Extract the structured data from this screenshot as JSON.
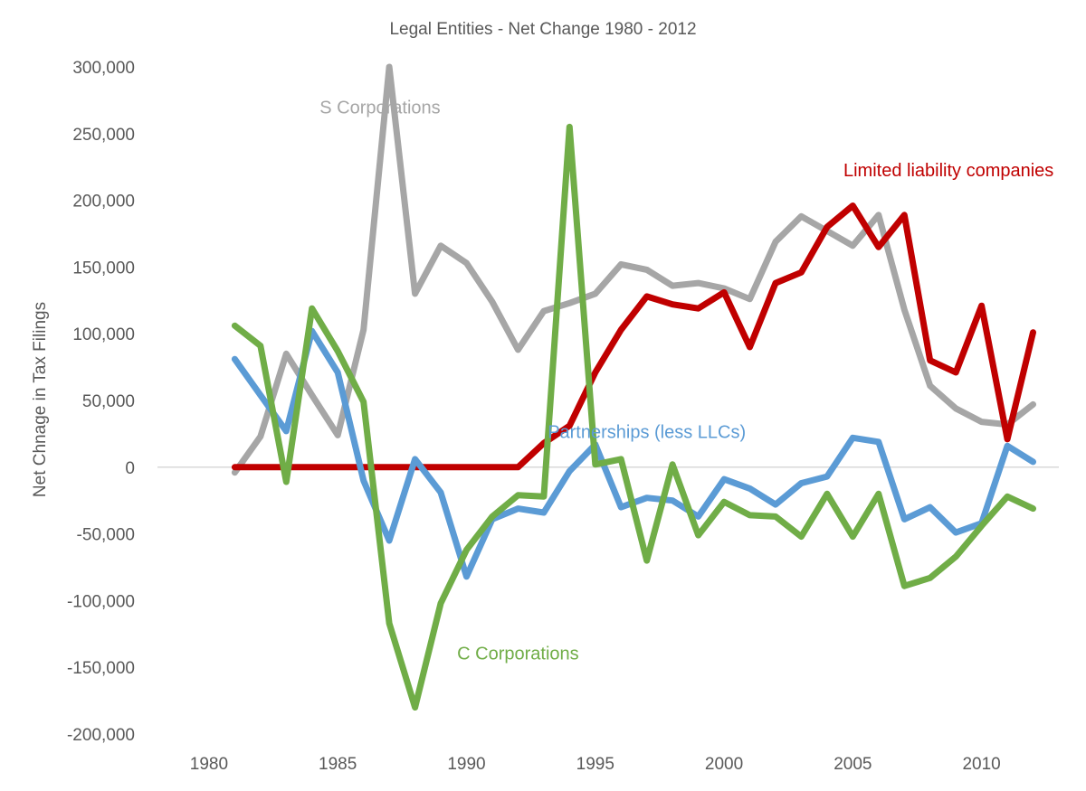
{
  "chart_data": {
    "type": "line",
    "title": "Legal Entities - Net Change 1980 - 2012",
    "xlabel": "",
    "ylabel": "Net Chnage in Tax Filings",
    "xlim": [
      1978,
      2013
    ],
    "ylim": [
      -200000,
      300000
    ],
    "x_ticks": [
      1980,
      1985,
      1990,
      1995,
      2000,
      2005,
      2010
    ],
    "x_tick_labels": [
      "1980",
      "1985",
      "1990",
      "1995",
      "2000",
      "2005",
      "2010"
    ],
    "y_ticks": [
      300000,
      250000,
      200000,
      150000,
      100000,
      50000,
      0,
      -50000,
      -100000,
      -150000,
      -200000
    ],
    "y_tick_labels": [
      "300,000",
      "250,000",
      "200,000",
      "150,000",
      "100,000",
      "50,000",
      "0",
      "-50,000",
      "-100,000",
      "-150,000",
      "-200,000"
    ],
    "grid": false,
    "legend": "inline labels",
    "x": [
      1981,
      1982,
      1983,
      1984,
      1985,
      1986,
      1987,
      1988,
      1989,
      1990,
      1991,
      1992,
      1993,
      1994,
      1995,
      1996,
      1997,
      1998,
      1999,
      2000,
      2001,
      2002,
      2003,
      2004,
      2005,
      2006,
      2007,
      2008,
      2009,
      2010,
      2011,
      2012
    ],
    "series": [
      {
        "name": "S Corporations",
        "label": "S Corporations",
        "color": "#a6a6a6",
        "values": [
          -4000,
          23000,
          85000,
          54000,
          24000,
          103000,
          300000,
          130000,
          166000,
          153000,
          124000,
          88000,
          117000,
          123000,
          130000,
          152000,
          148000,
          136000,
          138000,
          134000,
          126000,
          169000,
          188000,
          177000,
          166000,
          189000,
          118000,
          61000,
          44000,
          34000,
          32000,
          47000
        ]
      },
      {
        "name": "Limited liability companies",
        "label": "Limited liability companies",
        "color": "#c00000",
        "values": [
          0,
          0,
          0,
          0,
          0,
          0,
          0,
          0,
          0,
          0,
          0,
          0,
          18000,
          31000,
          71000,
          103000,
          128000,
          122000,
          119000,
          131000,
          90000,
          138000,
          146000,
          180000,
          196000,
          165000,
          189000,
          80000,
          71000,
          121000,
          21000,
          101000
        ]
      },
      {
        "name": "Partnerships (less LLCs)",
        "label": "Partnerships (less LLCs)",
        "color": "#5b9bd5",
        "values": [
          81000,
          54000,
          27000,
          102000,
          71000,
          -10000,
          -55000,
          6000,
          -19000,
          -82000,
          -39000,
          -31000,
          -34000,
          -3000,
          17000,
          -30000,
          -23000,
          -25000,
          -37000,
          -9000,
          -16000,
          -28000,
          -12000,
          -7000,
          22000,
          19000,
          -39000,
          -30000,
          -49000,
          -42000,
          16000,
          4000
        ]
      },
      {
        "name": "C Corporations",
        "label": "C Corporations",
        "color": "#70ad47",
        "values": [
          106000,
          91000,
          -11000,
          119000,
          87000,
          49000,
          -117000,
          -180000,
          -102000,
          -62000,
          -37000,
          -21000,
          -22000,
          255000,
          2000,
          6000,
          -70000,
          2000,
          -51000,
          -26000,
          -36000,
          -37000,
          -52000,
          -20000,
          -52000,
          -20000,
          -89000,
          -83000,
          -67000,
          -44000,
          -22000,
          -31000
        ]
      }
    ]
  }
}
